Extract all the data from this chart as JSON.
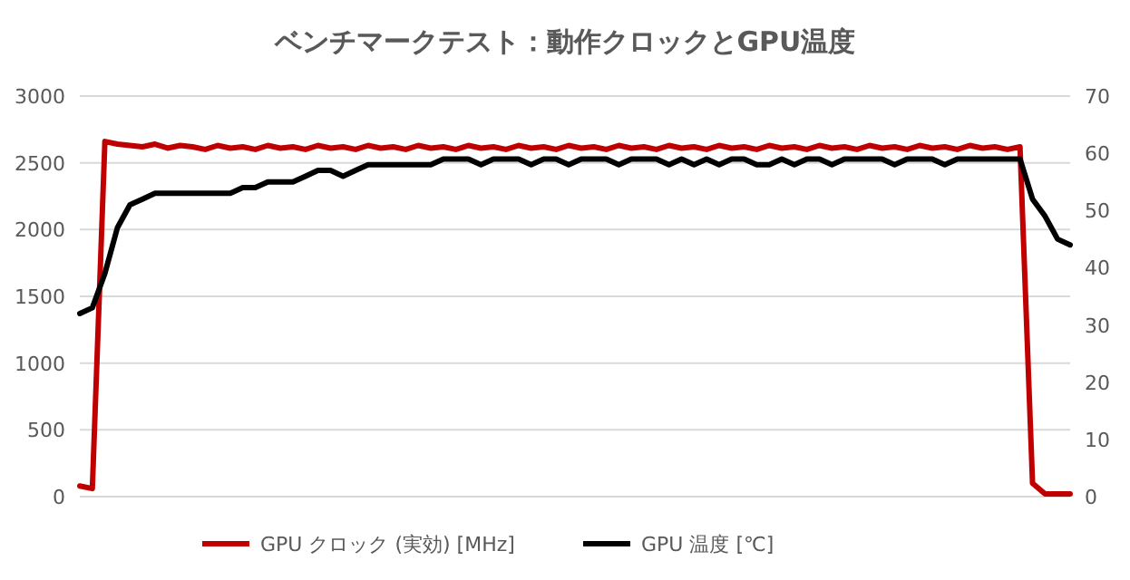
{
  "chart_data": {
    "type": "line",
    "title": "ベンチマークテスト：動作クロックとGPU温度",
    "categories": [
      null,
      null,
      null,
      null,
      null,
      null,
      null,
      null,
      null,
      null,
      null,
      null,
      null,
      null,
      null,
      null,
      null,
      null,
      null,
      null,
      null,
      null,
      null,
      null,
      null,
      null,
      null,
      null,
      null,
      null,
      null,
      null,
      null,
      null,
      null,
      null,
      null,
      null,
      null,
      null,
      null,
      null,
      null,
      null,
      null,
      null,
      null,
      null,
      null,
      null,
      null,
      null,
      null,
      null,
      null,
      null,
      null,
      null,
      null,
      null,
      null,
      null,
      null,
      null,
      null,
      null,
      null,
      null,
      null,
      null,
      null,
      null,
      null,
      null,
      null,
      null,
      null,
      null,
      null,
      null
    ],
    "series": [
      {
        "name": "GPU クロック (実効) [MHz]",
        "color": "#c00000",
        "values": [
          80,
          60,
          2660,
          2640,
          2630,
          2620,
          2640,
          2610,
          2630,
          2620,
          2600,
          2630,
          2610,
          2620,
          2600,
          2630,
          2610,
          2620,
          2600,
          2630,
          2610,
          2620,
          2600,
          2630,
          2610,
          2620,
          2600,
          2630,
          2610,
          2620,
          2600,
          2630,
          2610,
          2620,
          2600,
          2630,
          2610,
          2620,
          2600,
          2630,
          2610,
          2620,
          2600,
          2630,
          2610,
          2620,
          2600,
          2630,
          2610,
          2620,
          2600,
          2630,
          2610,
          2620,
          2600,
          2630,
          2610,
          2620,
          2600,
          2630,
          2610,
          2620,
          2600,
          2630,
          2610,
          2620,
          2600,
          2630,
          2610,
          2620,
          2600,
          2630,
          2610,
          2620,
          2600,
          2620,
          100,
          20,
          20,
          20
        ]
      },
      {
        "name": "GPU 温度 [℃]",
        "color": "#000000",
        "axis": "y2",
        "values": [
          32,
          33,
          39,
          47,
          51,
          52,
          53,
          53,
          53,
          53,
          53,
          53,
          53,
          54,
          54,
          55,
          55,
          55,
          56,
          57,
          57,
          56,
          57,
          58,
          58,
          58,
          58,
          58,
          58,
          59,
          59,
          59,
          58,
          59,
          59,
          59,
          58,
          59,
          59,
          58,
          59,
          59,
          59,
          58,
          59,
          59,
          59,
          58,
          59,
          58,
          59,
          58,
          59,
          59,
          58,
          58,
          59,
          58,
          59,
          59,
          58,
          59,
          59,
          59,
          59,
          58,
          59,
          59,
          59,
          58,
          59,
          59,
          59,
          59,
          59,
          59,
          52,
          49,
          45,
          44
        ]
      }
    ],
    "ylim": [
      0,
      3000
    ],
    "yticks": [
      0,
      500,
      1000,
      1500,
      2000,
      2500,
      3000
    ],
    "y2lim": [
      0,
      70
    ],
    "y2ticks": [
      0,
      10,
      20,
      30,
      40,
      50,
      60,
      70
    ],
    "grid": "y",
    "legend": "bottom",
    "marker": "none",
    "line_style": "solid"
  }
}
